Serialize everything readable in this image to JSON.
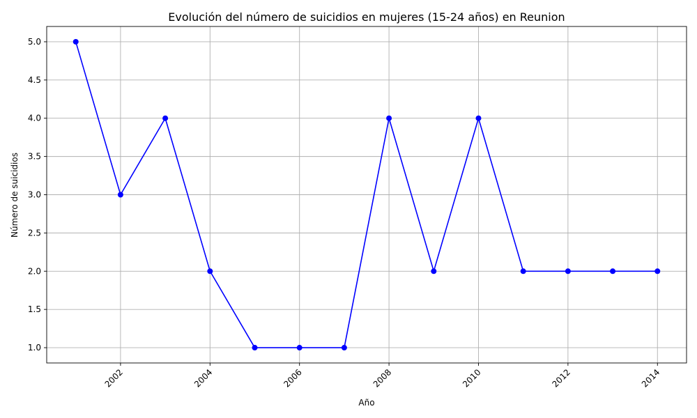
{
  "chart_data": {
    "type": "line",
    "title": "Evolución del número de suicidios en mujeres (15-24 años) en Reunion",
    "xlabel": "Año",
    "ylabel": "Número de suicidios",
    "x": [
      2001,
      2002,
      2003,
      2004,
      2005,
      2006,
      2007,
      2008,
      2009,
      2010,
      2011,
      2012,
      2013,
      2014
    ],
    "series": [
      {
        "values": [
          5,
          3,
          4,
          2,
          1,
          1,
          1,
          4,
          2,
          4,
          2,
          2,
          2,
          2
        ],
        "color": "#0000ff",
        "marker": "circle"
      }
    ],
    "xlim": [
      2000.35,
      2014.65
    ],
    "ylim": [
      0.8,
      5.2
    ],
    "xticks": [
      2002,
      2004,
      2006,
      2008,
      2010,
      2012,
      2014
    ],
    "xtick_labels": [
      "2002",
      "2004",
      "2006",
      "2008",
      "2010",
      "2012",
      "2014"
    ],
    "yticks": [
      1.0,
      1.5,
      2.0,
      2.5,
      3.0,
      3.5,
      4.0,
      4.5,
      5.0
    ],
    "ytick_labels": [
      "1.0",
      "1.5",
      "2.0",
      "2.5",
      "3.0",
      "3.5",
      "4.0",
      "4.5",
      "5.0"
    ],
    "grid": true,
    "legend": "none"
  }
}
